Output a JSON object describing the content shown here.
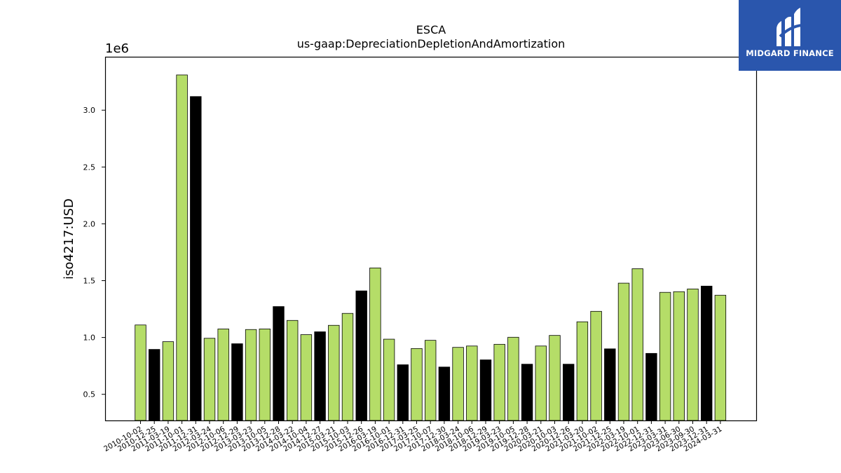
{
  "chart_data": {
    "type": "bar",
    "title": "ESCA",
    "subtitle": "us-gaap:DepreciationDepletionAndAmortization",
    "ylabel": "iso4217:USD",
    "xlabel": "",
    "offset_label": "1e6",
    "ylim": [
      270000,
      3470000
    ],
    "yticks": [
      {
        "value": 500000,
        "label": "0.5"
      },
      {
        "value": 1000000,
        "label": "1.0"
      },
      {
        "value": 1500000,
        "label": "1.5"
      },
      {
        "value": 2000000,
        "label": "2.0"
      },
      {
        "value": 2500000,
        "label": "2.5"
      },
      {
        "value": 3000000,
        "label": "3.0"
      }
    ],
    "grid": false,
    "colors": {
      "annual": "#b5dd68",
      "q4": "#000000",
      "edge": "#000000"
    },
    "categories": [
      "2010-10-02",
      "2010-12-25",
      "2011-03-19",
      "2011-10-01",
      "2011-12-31",
      "2012-03-24",
      "2012-10-06",
      "2012-12-29",
      "2013-03-23",
      "2013-10-05",
      "2013-12-28",
      "2014-03-22",
      "2014-10-04",
      "2014-12-27",
      "2015-03-21",
      "2015-10-03",
      "2015-12-26",
      "2016-03-19",
      "2016-10-01",
      "2016-12-31",
      "2017-03-25",
      "2017-10-07",
      "2017-12-30",
      "2018-03-24",
      "2018-10-06",
      "2018-12-29",
      "2019-03-23",
      "2019-10-05",
      "2019-12-28",
      "2020-03-21",
      "2020-10-03",
      "2020-12-26",
      "2021-03-20",
      "2021-10-02",
      "2021-12-25",
      "2022-03-19",
      "2022-10-01",
      "2022-12-31",
      "2023-03-31",
      "2023-06-30",
      "2023-09-30",
      "2023-12-31",
      "2024-03-31"
    ],
    "values": [
      1110000,
      895000,
      963000,
      3310000,
      3120000,
      993000,
      1075000,
      945000,
      1070000,
      1075000,
      1272000,
      1150000,
      1025000,
      1050000,
      1107000,
      1212000,
      1410000,
      1612000,
      985000,
      760000,
      903000,
      975000,
      740000,
      913000,
      925000,
      803000,
      940000,
      1002000,
      765000,
      925000,
      1018000,
      765000,
      1138000,
      1230000,
      900000,
      1478000,
      1605000,
      860000,
      1397000,
      1403000,
      1427000,
      1452000,
      1372000
    ],
    "bar_colors": [
      "annual",
      "q4",
      "annual",
      "annual",
      "q4",
      "annual",
      "annual",
      "q4",
      "annual",
      "annual",
      "q4",
      "annual",
      "annual",
      "q4",
      "annual",
      "annual",
      "q4",
      "annual",
      "annual",
      "q4",
      "annual",
      "annual",
      "q4",
      "annual",
      "annual",
      "q4",
      "annual",
      "annual",
      "q4",
      "annual",
      "annual",
      "q4",
      "annual",
      "annual",
      "q4",
      "annual",
      "annual",
      "q4",
      "annual",
      "annual",
      "annual",
      "q4",
      "annual"
    ]
  },
  "watermark": {
    "text": "MIDGARD FINANCE",
    "background": "#2a56ad",
    "icon": "midgard-logo-icon"
  }
}
